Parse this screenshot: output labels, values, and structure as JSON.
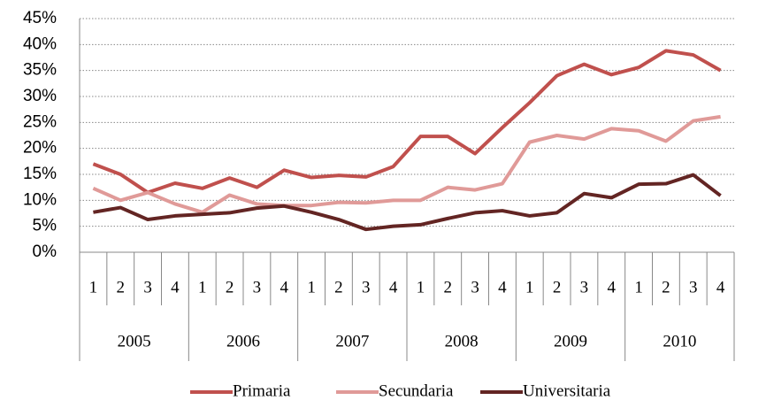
{
  "chart_data": {
    "type": "line",
    "categories": [
      "1",
      "2",
      "3",
      "4",
      "1",
      "2",
      "3",
      "4",
      "1",
      "2",
      "3",
      "4",
      "1",
      "2",
      "3",
      "4",
      "1",
      "2",
      "3",
      "4",
      "1",
      "2",
      "3",
      "4"
    ],
    "groups": [
      "2005",
      "2006",
      "2007",
      "2008",
      "2009",
      "2010"
    ],
    "series": [
      {
        "name": "Primaria",
        "color": "#c0504d",
        "values": [
          17,
          15,
          11.5,
          13.3,
          12.3,
          14.3,
          12.5,
          15.8,
          14.4,
          14.8,
          14.5,
          16.5,
          22.3,
          22.3,
          19,
          24,
          28.8,
          34,
          36.2,
          34.2,
          35.6,
          38.8,
          38,
          35
        ]
      },
      {
        "name": "Secundaria",
        "color": "#e09a98",
        "values": [
          12.3,
          10,
          11.5,
          9.3,
          7.7,
          11,
          9.3,
          9,
          9,
          9.6,
          9.5,
          10,
          10,
          12.5,
          12,
          13.2,
          21.2,
          22.5,
          21.8,
          23.8,
          23.4,
          21.4,
          25.3,
          26.1
        ]
      },
      {
        "name": "Universitaria",
        "color": "#632523",
        "values": [
          7.7,
          8.6,
          6.3,
          7,
          7.3,
          7.6,
          8.5,
          8.9,
          7.7,
          6.3,
          4.4,
          5,
          5.3,
          6.5,
          7.6,
          8,
          7,
          7.6,
          11.3,
          10.5,
          13.1,
          13.2,
          14.9,
          10.9
        ]
      }
    ],
    "ylim": [
      0,
      45
    ],
    "yticks": [
      {
        "value": 0,
        "label": "0%"
      },
      {
        "value": 5,
        "label": "5%"
      },
      {
        "value": 10,
        "label": "10%"
      },
      {
        "value": 15,
        "label": "15%"
      },
      {
        "value": 20,
        "label": "20%"
      },
      {
        "value": 25,
        "label": "25%"
      },
      {
        "value": 30,
        "label": "30%"
      },
      {
        "value": 35,
        "label": "35%"
      },
      {
        "value": 40,
        "label": "40%"
      },
      {
        "value": 45,
        "label": "45%"
      }
    ],
    "grid": true,
    "legend": "bottom"
  }
}
